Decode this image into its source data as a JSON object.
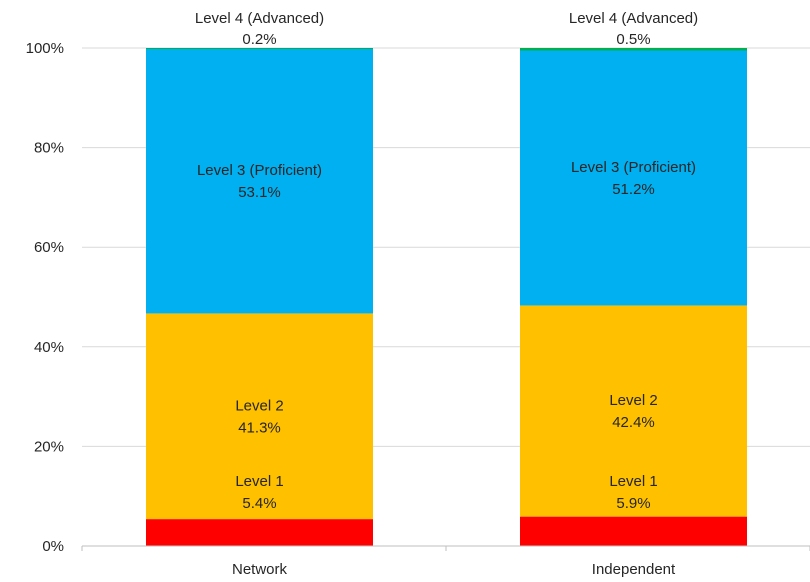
{
  "chart_data": {
    "type": "bar",
    "stacked": true,
    "categories": [
      "Network",
      "Independent"
    ],
    "series": [
      {
        "name": "Level 1",
        "label": "Level 1",
        "values": [
          5.4,
          5.9
        ],
        "value_labels": [
          "5.4%",
          "5.9%"
        ],
        "color": "#ff0000"
      },
      {
        "name": "Level 2",
        "label": "Level 2",
        "values": [
          41.3,
          42.4
        ],
        "value_labels": [
          "41.3%",
          "42.4%"
        ],
        "color": "#ffc000"
      },
      {
        "name": "Level 3 (Proficient)",
        "label": "Level 3 (Proficient)",
        "values": [
          53.1,
          51.2
        ],
        "value_labels": [
          "53.1%",
          "51.2%"
        ],
        "color": "#00b0f0"
      },
      {
        "name": "Level 4 (Advanced)",
        "label": "Level 4 (Advanced)",
        "values": [
          0.2,
          0.5
        ],
        "value_labels": [
          "0.2%",
          "0.5%"
        ],
        "color": "#00b050"
      }
    ],
    "yticks": [
      0,
      20,
      40,
      60,
      80,
      100
    ],
    "ytick_labels": [
      "0%",
      "20%",
      "40%",
      "60%",
      "80%",
      "100%"
    ],
    "ylim": [
      0,
      100
    ],
    "grid": true,
    "title": "",
    "xlabel": "",
    "ylabel": ""
  }
}
